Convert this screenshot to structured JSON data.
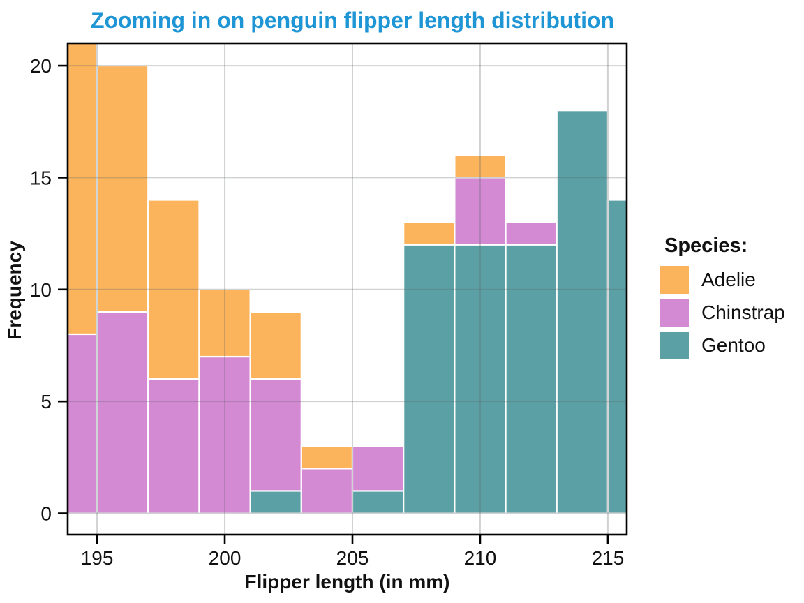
{
  "title": {
    "text": "Zooming in on penguin flipper length distribution",
    "color": "#1E95D4"
  },
  "axes": {
    "x": {
      "title": "Flipper length (in mm)",
      "tick_labels": [
        "195",
        "200",
        "205",
        "210",
        "215"
      ]
    },
    "y": {
      "title": "Frequency",
      "tick_labels": [
        "0",
        "5",
        "10",
        "15",
        "20"
      ]
    }
  },
  "legend": {
    "title": "Species:",
    "position": "right",
    "items": [
      {
        "label": "Adelie",
        "color": "#FBB45C"
      },
      {
        "label": "Chinstrap",
        "color": "#D38AD3"
      },
      {
        "label": "Gentoo",
        "color": "#5BA0A5"
      }
    ]
  },
  "colors": {
    "title": "#1E95D4",
    "adelie": "#FBB45C",
    "chinstrap": "#D38AD3",
    "gentoo": "#5BA0A5",
    "bar_stroke": "#FFFFFF",
    "gridline_overlay": "rgba(95,104,110,0.30)",
    "panel_border": "#000000",
    "tick_mark": "#000000",
    "tick_label": "#111111",
    "background": "#FFFFFF"
  },
  "chart_data": {
    "type": "bar",
    "subtype": "stacked-histogram",
    "title": "Zooming in on penguin flipper length distribution",
    "xlabel": "Flipper length (in mm)",
    "ylabel": "Frequency",
    "x_ticks": [
      195,
      200,
      205,
      210,
      215
    ],
    "y_ticks": [
      0,
      5,
      10,
      15,
      20
    ],
    "xlim": [
      193.85,
      215.74
    ],
    "ylim": [
      -0.95,
      21.0
    ],
    "grid": "major-only, visible through translucent bars",
    "legend_position": "right",
    "bin_width": 2,
    "bin_edges": [
      193,
      195,
      197,
      199,
      201,
      203,
      205,
      207,
      209,
      211,
      213,
      215,
      217
    ],
    "stack_order_bottom_to_top": [
      "Gentoo",
      "Chinstrap",
      "Adelie"
    ],
    "series": [
      {
        "name": "Adelie",
        "color": "#FBB45C",
        "values": [
          13,
          11,
          8,
          3,
          3,
          1,
          0,
          1,
          1,
          0,
          0,
          0
        ]
      },
      {
        "name": "Chinstrap",
        "color": "#D38AD3",
        "values": [
          8,
          9,
          6,
          7,
          5,
          2,
          2,
          0,
          3,
          1,
          0,
          0
        ]
      },
      {
        "name": "Gentoo",
        "color": "#5BA0A5",
        "values": [
          0,
          0,
          0,
          0,
          1,
          0,
          1,
          12,
          12,
          12,
          18,
          14
        ]
      }
    ],
    "bin_totals_visible": [
      21,
      20,
      14,
      10,
      9,
      3,
      3,
      13,
      16,
      13,
      18,
      14
    ],
    "top_clipped_bins": [
      0
    ],
    "clipping_note": "x-axis is zoomed: first bin (193-195) is cut by left edge and its top is cut at y=21 by the panel top; last bin (215-217) is cut by the right edge"
  }
}
